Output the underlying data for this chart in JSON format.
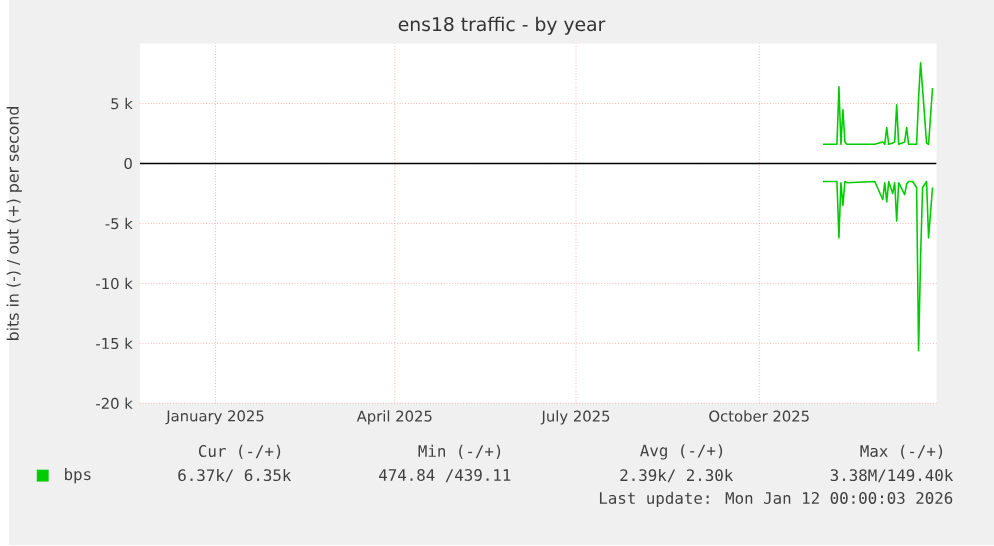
{
  "chart_data": {
    "type": "line",
    "title": "ens18 traffic - by year",
    "ylabel": "bits in (-) / out (+) per second",
    "x": [
      "2025-11-16",
      "2025-11-23",
      "2025-11-24",
      "2025-11-25",
      "2025-11-26",
      "2025-11-27",
      "2025-11-28",
      "2025-12-12",
      "2025-12-16",
      "2025-12-17",
      "2025-12-18",
      "2025-12-19",
      "2025-12-21",
      "2025-12-22",
      "2025-12-23",
      "2025-12-24",
      "2025-12-27",
      "2025-12-28",
      "2025-12-29",
      "2025-12-31",
      "2026-01-02",
      "2026-01-03",
      "2026-01-04",
      "2026-01-05",
      "2026-01-07",
      "2026-01-08",
      "2026-01-10"
    ],
    "series": [
      {
        "name": "bps",
        "color": "#00cc00",
        "values": [
          1600,
          1600,
          6400,
          1600,
          4500,
          1800,
          1600,
          1600,
          1800,
          1600,
          3000,
          1600,
          1700,
          1800,
          4900,
          1600,
          1800,
          3000,
          1600,
          1600,
          1600,
          5500,
          8400,
          6200,
          1700,
          1600,
          6300
        ]
      },
      {
        "color": "#00cc00",
        "values": [
          -1500,
          -1500,
          -6200,
          -1600,
          -3500,
          -1500,
          -1600,
          -1500,
          -3000,
          -1600,
          -3200,
          -1500,
          -2500,
          -1600,
          -4800,
          -1600,
          -2600,
          -1700,
          -1500,
          -1500,
          -2000,
          -15600,
          -7800,
          -2000,
          -1500,
          -6200,
          -2000
        ]
      }
    ],
    "xlim": [
      "2024-12-08",
      "2026-01-12"
    ],
    "xticks": [
      {
        "value": "2025-01-15",
        "label": "January 2025"
      },
      {
        "value": "2025-04-15",
        "label": "April 2025"
      },
      {
        "value": "2025-07-15",
        "label": "July 2025"
      },
      {
        "value": "2025-10-15",
        "label": "October 2025"
      }
    ],
    "ylim": [
      -20000,
      10000
    ],
    "yticks": [
      {
        "value": -20000,
        "label": "-20 k"
      },
      {
        "value": -15000,
        "label": "-15 k"
      },
      {
        "value": -10000,
        "label": "-10 k"
      },
      {
        "value": -5000,
        "label": "-5 k"
      },
      0,
      {
        "value": 5000,
        "label": "5 k"
      }
    ],
    "grid": true,
    "legend": "bottom",
    "ref_lines": [
      {
        "axis": "y",
        "value": 0,
        "color": "#000000"
      }
    ],
    "annotations": [
      "Cur (-/+)",
      "Min (-/+)",
      "Avg (-/+)",
      "Max (-/+)",
      "6.37k/   6.35k",
      "474.84 /439.11",
      "2.39k/   2.30k",
      "3.38M/149.40k",
      "Last update: Mon Jan 12 00:00:03 2026"
    ]
  }
}
